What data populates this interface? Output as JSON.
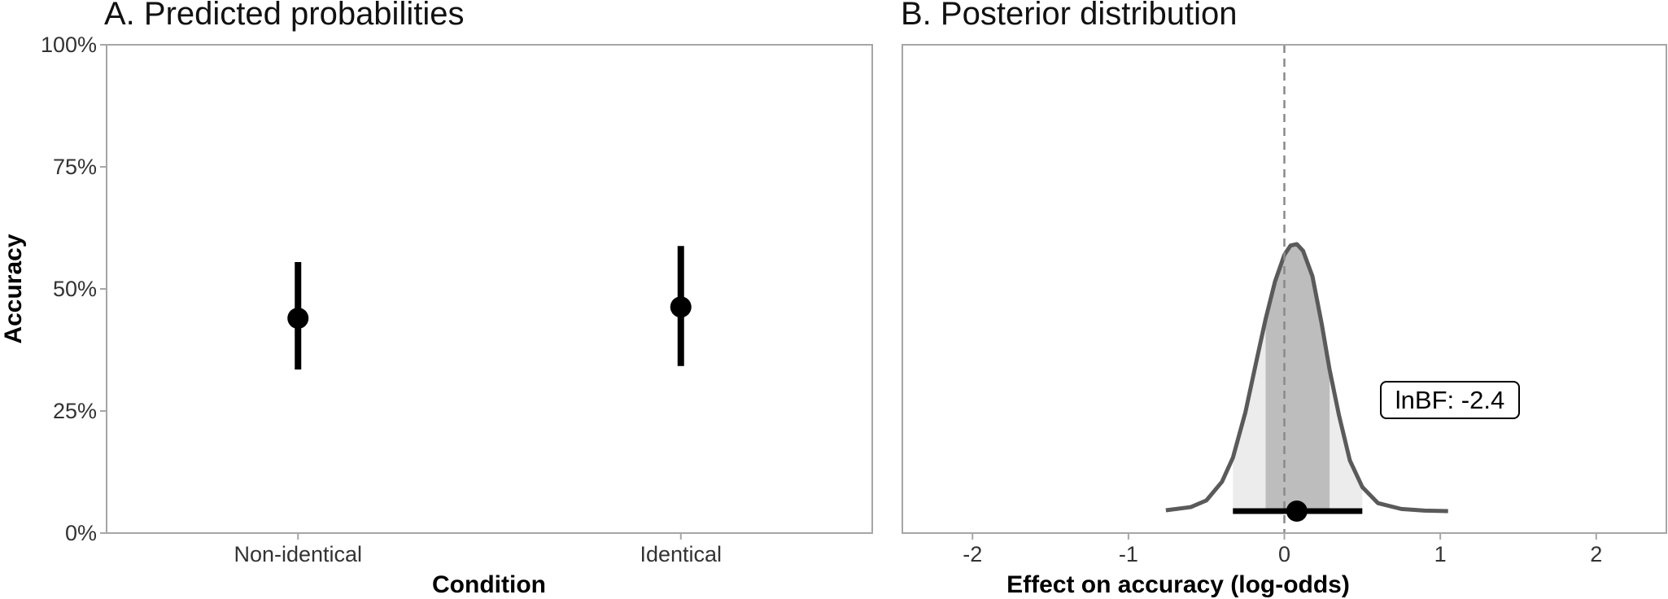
{
  "chart_data": [
    {
      "type": "scatter",
      "title": "A. Predicted probabilities",
      "xlabel": "Condition",
      "ylabel": "Accuracy",
      "categories": [
        "Non-identical",
        "Identical"
      ],
      "y_ticks": [
        "0%",
        "25%",
        "50%",
        "75%",
        "100%"
      ],
      "ylim": [
        0,
        100
      ],
      "y_unit": "%",
      "grid": false,
      "points": [
        {
          "category": "Non-identical",
          "value": 44,
          "lower": 33.5,
          "upper": 55.5
        },
        {
          "category": "Identical",
          "value": 46.3,
          "lower": 34.2,
          "upper": 58.8
        }
      ]
    },
    {
      "type": "area",
      "title": "B. Posterior distribution",
      "xlabel": "Effect on accuracy (log-odds)",
      "ylabel": "",
      "x_ticks": [
        "-2",
        "-1",
        "0",
        "1",
        "2"
      ],
      "xlim": [
        -2.45,
        2.45
      ],
      "grid": false,
      "reference_line_x": 0,
      "point_estimate": 0.08,
      "interval_inner": [
        -0.12,
        0.29
      ],
      "interval_outer": [
        -0.33,
        0.5
      ],
      "density_curve": {
        "x": [
          -0.76,
          -0.6,
          -0.5,
          -0.4,
          -0.33,
          -0.25,
          -0.18,
          -0.12,
          -0.06,
          0.0,
          0.04,
          0.08,
          0.12,
          0.18,
          0.24,
          0.29,
          0.35,
          0.42,
          0.5,
          0.6,
          0.75,
          0.9,
          1.05
        ],
        "density": [
          0.003,
          0.015,
          0.04,
          0.11,
          0.2,
          0.37,
          0.56,
          0.72,
          0.86,
          0.96,
          0.995,
          1.0,
          0.975,
          0.88,
          0.7,
          0.53,
          0.36,
          0.19,
          0.09,
          0.03,
          0.008,
          0.002,
          0.0
        ]
      },
      "annotation": "lnBF: -2.4"
    }
  ]
}
